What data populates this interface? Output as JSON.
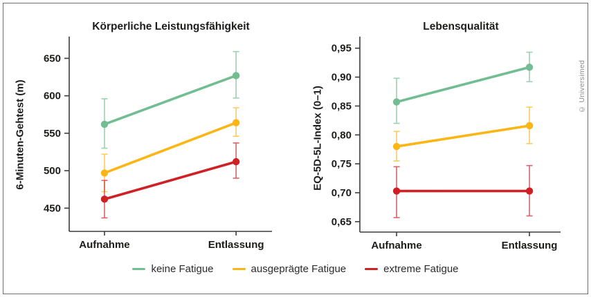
{
  "copyright": "© Universimed",
  "legend": {
    "items": [
      {
        "label": "keine Fatigue"
      },
      {
        "label": "ausgeprägte Fatigue"
      },
      {
        "label": "extreme Fatigue"
      }
    ]
  },
  "chart_data": [
    {
      "type": "line",
      "title": "Körperliche Leistungsfähigkeit",
      "ylabel": "6-Minuten-Gehtest (m)",
      "xlabel": "",
      "categories": [
        "Aufnahme",
        "Entlassung"
      ],
      "ylim": [
        419,
        679
      ],
      "yticks": [
        450,
        500,
        550,
        600,
        650
      ],
      "decimals": 0,
      "grid": false,
      "legend_position": "bottom",
      "series": [
        {
          "name": "keine Fatigue",
          "color": "#72bd92",
          "values": [
            562,
            627
          ],
          "err_low": [
            530,
            597
          ],
          "err_high": [
            596,
            659
          ]
        },
        {
          "name": "ausgeprägte Fatigue",
          "color": "#fbb616",
          "values": [
            497,
            564
          ],
          "err_low": [
            472,
            546
          ],
          "err_high": [
            522,
            584
          ]
        },
        {
          "name": "extreme Fatigue",
          "color": "#cf2026",
          "values": [
            462,
            512
          ],
          "err_low": [
            437,
            490
          ],
          "err_high": [
            487,
            537
          ]
        }
      ]
    },
    {
      "type": "line",
      "title": "Lebensqualität",
      "ylabel": "EQ-5D-5L-Index (0–1)",
      "xlabel": "",
      "categories": [
        "Aufnahme",
        "Entlassung"
      ],
      "ylim": [
        0.632,
        0.97
      ],
      "yticks": [
        0.65,
        0.7,
        0.75,
        0.8,
        0.85,
        0.9,
        0.95
      ],
      "decimals": 2,
      "decimal_separator": ",",
      "grid": false,
      "legend_position": "bottom",
      "series": [
        {
          "name": "keine Fatigue",
          "color": "#72bd92",
          "values": [
            0.857,
            0.917
          ],
          "err_low": [
            0.82,
            0.892
          ],
          "err_high": [
            0.898,
            0.943
          ]
        },
        {
          "name": "ausgeprägte Fatigue",
          "color": "#fbb616",
          "values": [
            0.78,
            0.816
          ],
          "err_low": [
            0.755,
            0.785
          ],
          "err_high": [
            0.806,
            0.848
          ]
        },
        {
          "name": "extreme Fatigue",
          "color": "#cf2026",
          "values": [
            0.703,
            0.703
          ],
          "err_low": [
            0.657,
            0.66
          ],
          "err_high": [
            0.745,
            0.747
          ]
        }
      ]
    }
  ]
}
